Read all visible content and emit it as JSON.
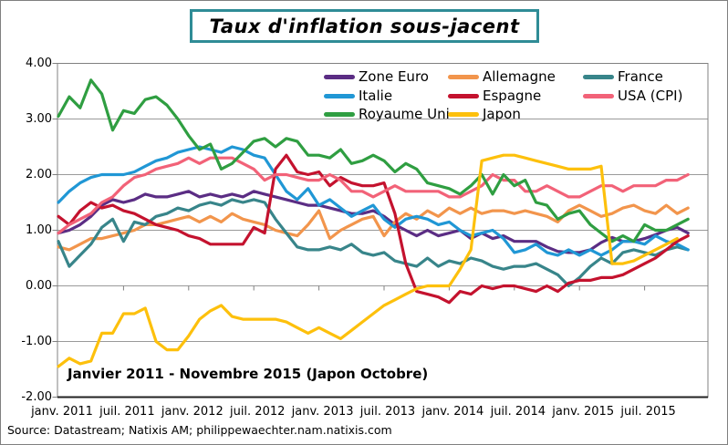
{
  "title": "Taux d'inflation sous-jacent",
  "annotation": "Janvier 2011 - Novembre 2015 (Japon Octobre)",
  "source": "Source: Datastream; Natixis AM; philippewaechter.nam.natixis.com",
  "chart_data": {
    "type": "line",
    "title": "Taux d'inflation sous-jacent",
    "x_range": "monthly, 2011-01 to 2015-11 (Japon ends 2015-10)",
    "x_tick_labels": [
      "janv. 2011",
      "juil. 2011",
      "janv. 2012",
      "juil. 2012",
      "janv. 2013",
      "juil. 2013",
      "janv. 2014",
      "juil. 2014",
      "janv. 2015",
      "juil. 2015"
    ],
    "y_tick_labels": [
      "4.00",
      "3.00",
      "2.00",
      "1.00",
      "0.00",
      "-1.00",
      "-2.00"
    ],
    "y_tick_values": [
      4,
      3,
      2,
      1,
      0,
      -1,
      -2
    ],
    "ylim": [
      -2,
      4
    ],
    "grid": "horizontal",
    "legend_position": "top",
    "series": [
      {
        "name": "Zone Euro",
        "color": "#5B2D84",
        "values": [
          0.95,
          1.0,
          1.1,
          1.25,
          1.45,
          1.55,
          1.5,
          1.55,
          1.65,
          1.6,
          1.6,
          1.65,
          1.7,
          1.6,
          1.65,
          1.6,
          1.65,
          1.6,
          1.7,
          1.65,
          1.6,
          1.55,
          1.5,
          1.45,
          1.45,
          1.4,
          1.35,
          1.3,
          1.3,
          1.35,
          1.25,
          1.1,
          1.0,
          0.9,
          1.0,
          0.9,
          0.95,
          1.0,
          0.85,
          0.95,
          0.85,
          0.9,
          0.8,
          0.8,
          0.8,
          0.7,
          0.62,
          0.6,
          0.6,
          0.65,
          0.78,
          0.87,
          0.8,
          0.8,
          0.85,
          0.92,
          1.0,
          1.05,
          0.95
        ]
      },
      {
        "name": "Allemagne",
        "color": "#F2954C",
        "values": [
          0.7,
          0.65,
          0.75,
          0.85,
          0.85,
          0.9,
          0.95,
          1.0,
          1.1,
          1.1,
          1.15,
          1.2,
          1.25,
          1.15,
          1.25,
          1.15,
          1.3,
          1.2,
          1.15,
          1.1,
          1.0,
          0.95,
          0.9,
          1.1,
          1.35,
          0.85,
          1.0,
          1.1,
          1.2,
          1.25,
          0.9,
          1.15,
          1.3,
          1.2,
          1.35,
          1.25,
          1.4,
          1.3,
          1.4,
          1.3,
          1.35,
          1.35,
          1.3,
          1.35,
          1.3,
          1.25,
          1.15,
          1.35,
          1.45,
          1.35,
          1.25,
          1.3,
          1.4,
          1.45,
          1.35,
          1.3,
          1.45,
          1.3,
          1.4
        ]
      },
      {
        "name": "France",
        "color": "#38858A",
        "values": [
          0.8,
          0.35,
          0.55,
          0.75,
          1.05,
          1.2,
          0.8,
          1.15,
          1.1,
          1.25,
          1.3,
          1.4,
          1.35,
          1.45,
          1.5,
          1.45,
          1.55,
          1.5,
          1.55,
          1.5,
          1.2,
          0.95,
          0.7,
          0.65,
          0.65,
          0.7,
          0.65,
          0.75,
          0.6,
          0.55,
          0.6,
          0.45,
          0.4,
          0.35,
          0.5,
          0.35,
          0.45,
          0.4,
          0.5,
          0.45,
          0.35,
          0.3,
          0.35,
          0.35,
          0.4,
          0.3,
          0.2,
          0.0,
          0.15,
          0.35,
          0.5,
          0.4,
          0.6,
          0.65,
          0.6,
          0.55,
          0.65,
          0.7,
          0.65
        ]
      },
      {
        "name": "Italie",
        "color": "#2097D5",
        "values": [
          1.5,
          1.7,
          1.85,
          1.95,
          2.0,
          2.0,
          2.0,
          2.05,
          2.15,
          2.25,
          2.3,
          2.4,
          2.45,
          2.5,
          2.45,
          2.4,
          2.5,
          2.45,
          2.35,
          2.3,
          2.0,
          1.7,
          1.55,
          1.75,
          1.45,
          1.55,
          1.4,
          1.25,
          1.35,
          1.45,
          1.2,
          1.05,
          1.2,
          1.25,
          1.2,
          1.1,
          1.15,
          1.0,
          0.9,
          0.95,
          1.0,
          0.85,
          0.6,
          0.65,
          0.75,
          0.6,
          0.55,
          0.65,
          0.55,
          0.65,
          0.55,
          0.65,
          0.8,
          0.8,
          0.75,
          0.9,
          0.8,
          0.75,
          0.65
        ]
      },
      {
        "name": "Espagne",
        "color": "#C4122E",
        "values": [
          1.25,
          1.1,
          1.35,
          1.5,
          1.4,
          1.45,
          1.35,
          1.3,
          1.2,
          1.1,
          1.05,
          1.0,
          0.9,
          0.85,
          0.75,
          0.75,
          0.75,
          0.75,
          1.05,
          0.95,
          2.1,
          2.35,
          2.05,
          2.0,
          2.05,
          1.8,
          1.95,
          1.85,
          1.8,
          1.8,
          1.85,
          1.3,
          0.4,
          -0.1,
          -0.15,
          -0.2,
          -0.3,
          -0.1,
          -0.15,
          0.0,
          -0.05,
          0.0,
          0.0,
          -0.05,
          -0.1,
          0.0,
          -0.1,
          0.05,
          0.1,
          0.1,
          0.15,
          0.15,
          0.2,
          0.3,
          0.4,
          0.5,
          0.65,
          0.8,
          0.9
        ]
      },
      {
        "name": "USA (CPI)",
        "color": "#F26278",
        "values": [
          0.95,
          1.1,
          1.2,
          1.3,
          1.5,
          1.6,
          1.8,
          1.95,
          2.0,
          2.1,
          2.15,
          2.2,
          2.3,
          2.2,
          2.3,
          2.3,
          2.3,
          2.2,
          2.1,
          1.9,
          2.0,
          2.0,
          1.95,
          1.9,
          1.9,
          2.0,
          1.9,
          1.7,
          1.7,
          1.6,
          1.7,
          1.8,
          1.7,
          1.7,
          1.7,
          1.7,
          1.6,
          1.6,
          1.7,
          1.8,
          2.0,
          1.9,
          1.9,
          1.7,
          1.7,
          1.8,
          1.7,
          1.6,
          1.6,
          1.7,
          1.8,
          1.8,
          1.7,
          1.8,
          1.8,
          1.8,
          1.9,
          1.9,
          2.0
        ]
      },
      {
        "name": "Royaume Uni",
        "color": "#2F9E41",
        "values": [
          3.05,
          3.4,
          3.2,
          3.7,
          3.45,
          2.8,
          3.15,
          3.1,
          3.35,
          3.4,
          3.25,
          3.0,
          2.7,
          2.45,
          2.55,
          2.1,
          2.2,
          2.4,
          2.6,
          2.65,
          2.5,
          2.65,
          2.6,
          2.35,
          2.35,
          2.3,
          2.45,
          2.2,
          2.25,
          2.35,
          2.25,
          2.05,
          2.2,
          2.1,
          1.85,
          1.8,
          1.75,
          1.65,
          1.8,
          2.0,
          1.65,
          2.0,
          1.8,
          1.9,
          1.5,
          1.45,
          1.2,
          1.3,
          1.35,
          1.1,
          0.95,
          0.8,
          0.9,
          0.8,
          1.1,
          1.0,
          1.0,
          1.1,
          1.2
        ]
      },
      {
        "name": "Japon",
        "color": "#FDC00C",
        "values": [
          -1.45,
          -1.3,
          -1.4,
          -1.35,
          -0.85,
          -0.85,
          -0.5,
          -0.5,
          -0.4,
          -1.0,
          -1.15,
          -1.15,
          -0.9,
          -0.6,
          -0.45,
          -0.35,
          -0.55,
          -0.6,
          -0.6,
          -0.6,
          -0.6,
          -0.65,
          -0.75,
          -0.85,
          -0.75,
          -0.85,
          -0.95,
          -0.8,
          -0.65,
          -0.5,
          -0.35,
          -0.25,
          -0.15,
          -0.05,
          0.0,
          0.0,
          0.0,
          0.3,
          0.65,
          2.25,
          2.3,
          2.35,
          2.35,
          2.3,
          2.25,
          2.2,
          2.15,
          2.1,
          2.1,
          2.1,
          2.15,
          0.4,
          0.4,
          0.45,
          0.55,
          0.65,
          0.75,
          0.85
        ]
      }
    ]
  }
}
